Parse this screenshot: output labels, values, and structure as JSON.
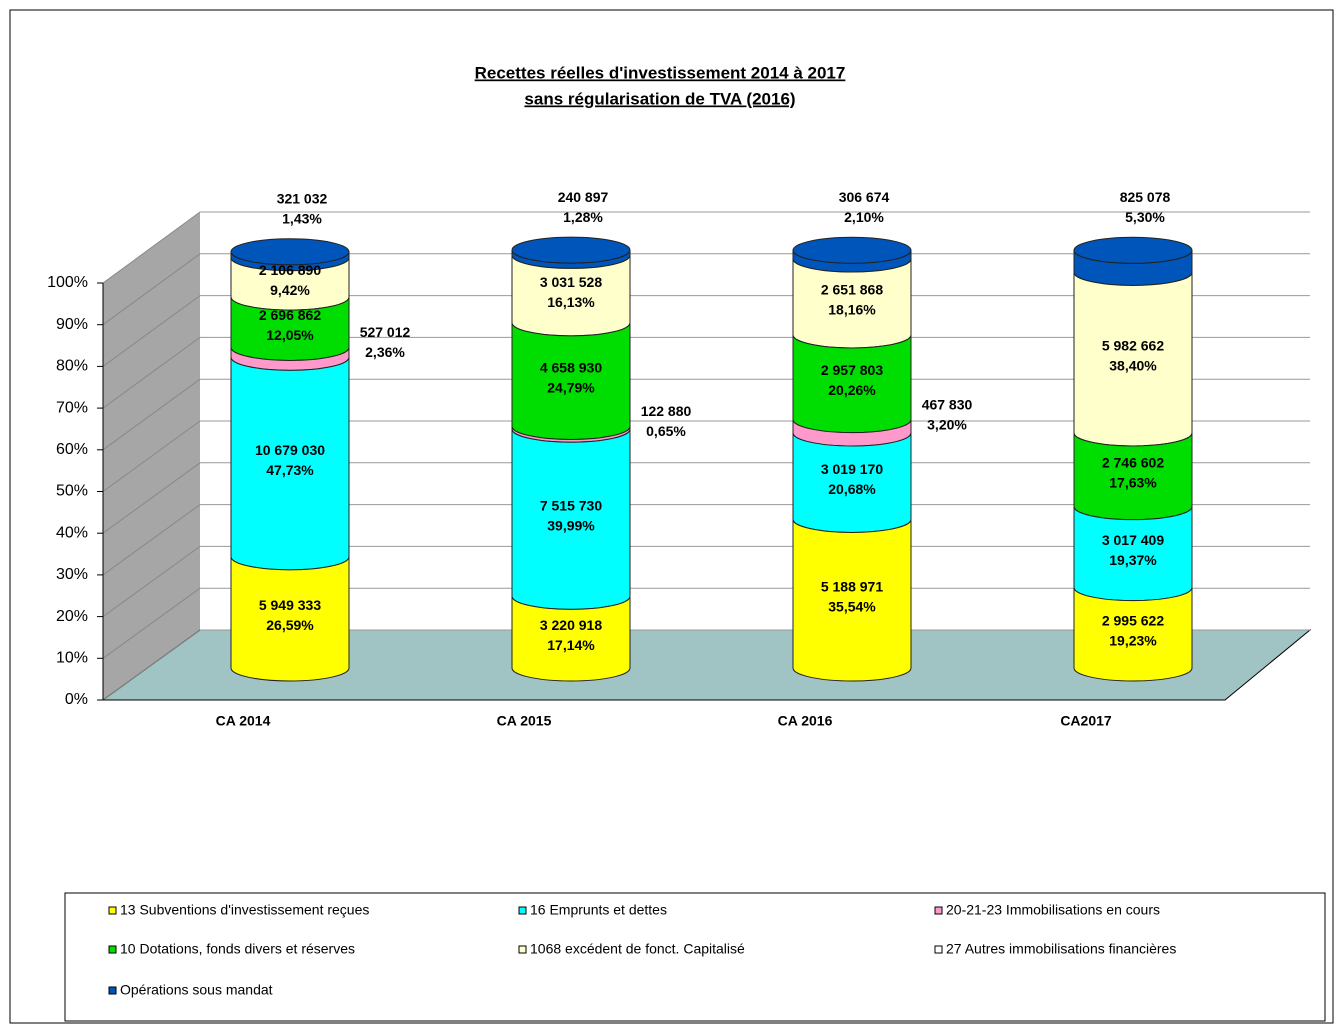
{
  "chart_data": {
    "type": "stacked_cylinder",
    "title": [
      "Recettes réelles d'investissement 2014 à 2017",
      "sans régularisation de TVA (2016)"
    ],
    "categories": [
      "CA 2014",
      "CA 2015",
      "CA 2016",
      "CA2017"
    ],
    "ylim": [
      0,
      100
    ],
    "yticks": [
      {
        "value": 0,
        "label": "0%"
      },
      {
        "value": 10,
        "label": "10%"
      },
      {
        "value": 20,
        "label": "20%"
      },
      {
        "value": 30,
        "label": "30%"
      },
      {
        "value": 40,
        "label": "40%"
      },
      {
        "value": 50,
        "label": "50%"
      },
      {
        "value": 60,
        "label": "60%"
      },
      {
        "value": 70,
        "label": "70%"
      },
      {
        "value": 80,
        "label": "80%"
      },
      {
        "value": 90,
        "label": "90%"
      },
      {
        "value": 100,
        "label": "100%"
      }
    ],
    "grid": true,
    "legend": "bottom",
    "series": [
      {
        "name": "13 Subventions d'investissement reçues",
        "color": "#ffff00",
        "values": [
          26.59,
          17.14,
          35.54,
          19.23
        ],
        "value_labels": [
          "26,59%",
          "17,14%",
          "35,54%",
          "19,23%"
        ],
        "amounts": [
          "5 949 333",
          "3 220 918",
          "5 188 971",
          "2 995 622"
        ]
      },
      {
        "name": "16 Emprunts et dettes",
        "color": "#00ffff",
        "values": [
          47.73,
          39.99,
          20.68,
          19.37
        ],
        "value_labels": [
          "47,73%",
          "39,99%",
          "20,68%",
          "19,37%"
        ],
        "amounts": [
          "10 679 030",
          "7 515 730",
          "3 019 170",
          "3 017 409"
        ]
      },
      {
        "name": "20-21-23 Immobilisations en cours",
        "color": "#ff99cc",
        "values": [
          2.36,
          0.65,
          3.2,
          null
        ],
        "value_labels": [
          "2,36%",
          "0,65%",
          "3,20%",
          null
        ],
        "amounts": [
          "527 012",
          "122 880",
          "467 830",
          null
        ]
      },
      {
        "name": "10 Dotations, fonds divers et réserves",
        "color": "#00dd00",
        "values": [
          12.05,
          24.79,
          20.26,
          17.63
        ],
        "value_labels": [
          "12,05%",
          "24,79%",
          "20,26%",
          "17,63%"
        ],
        "amounts": [
          "2 696 862",
          "4 658 930",
          "2 957 803",
          "2 746 602"
        ]
      },
      {
        "name": "1068 excédent de fonct. Capitalisé",
        "color": "#ffffcc",
        "values": [
          9.42,
          16.13,
          18.16,
          38.4
        ],
        "value_labels": [
          "9,42%",
          "16,13%",
          "18,16%",
          "38,40%"
        ],
        "amounts": [
          "2 106 890",
          "3 031 528",
          "2 651 868",
          "5 982 662"
        ]
      },
      {
        "name": "27 Autres immobilisations financières",
        "color": "#ffffff",
        "values": [
          null,
          null,
          null,
          null
        ],
        "value_labels": [
          null,
          null,
          null,
          null
        ],
        "amounts": [
          null,
          null,
          null,
          null
        ]
      },
      {
        "name": "Opérations sous mandat",
        "color": "#0055bb",
        "values": [
          1.43,
          1.28,
          2.1,
          5.3
        ],
        "value_labels": [
          "1,43%",
          "1,28%",
          "2,10%",
          "5,30%"
        ],
        "amounts": [
          "321 032",
          "240 897",
          "306 674",
          "825 078"
        ]
      }
    ]
  }
}
